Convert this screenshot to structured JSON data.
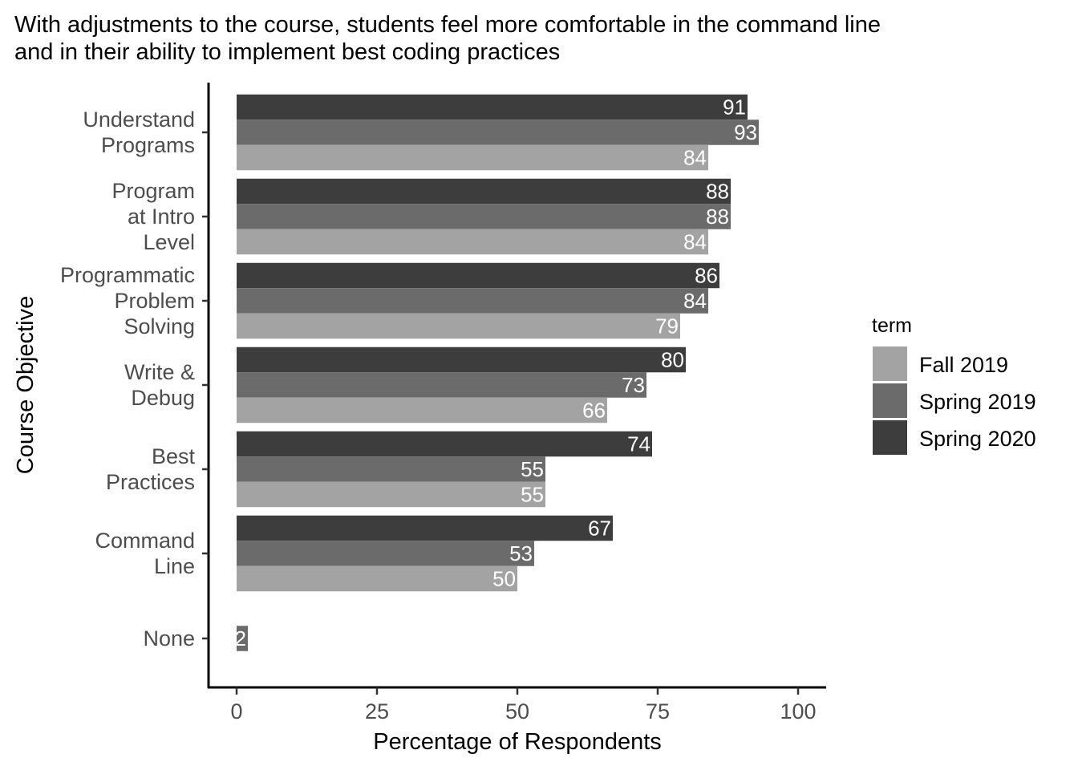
{
  "chart_data": {
    "type": "bar",
    "orientation": "horizontal",
    "title": "With adjustments to the course, students feel more comfortable in the command line\n and in their ability to implement best coding practices",
    "xlabel": "Percentage of Respondents",
    "ylabel": "Course Objective",
    "xlim": [
      0,
      100
    ],
    "xticks": [
      "0",
      "25",
      "50",
      "75",
      "100"
    ],
    "grid": false,
    "legend": {
      "title": "term",
      "position": "right"
    },
    "categories": [
      [
        "Understand",
        "Programs"
      ],
      [
        "Program",
        "at Intro",
        "Level"
      ],
      [
        "Programmatic",
        "Problem",
        "Solving"
      ],
      [
        "Write &",
        "Debug"
      ],
      [
        "Best",
        "Practices"
      ],
      [
        "Command",
        "Line"
      ],
      [
        "None"
      ]
    ],
    "series": [
      {
        "name": "Spring 2020",
        "color": "#3d3d3d",
        "values": [
          91,
          88,
          86,
          80,
          74,
          67,
          null
        ]
      },
      {
        "name": "Spring 2019",
        "color": "#6b6b6b",
        "values": [
          93,
          88,
          84,
          73,
          55,
          53,
          2
        ]
      },
      {
        "name": "Fall 2019",
        "color": "#a3a3a3",
        "values": [
          84,
          84,
          79,
          66,
          55,
          50,
          null
        ]
      }
    ],
    "legend_order": [
      "Fall 2019",
      "Spring 2019",
      "Spring 2020"
    ]
  }
}
